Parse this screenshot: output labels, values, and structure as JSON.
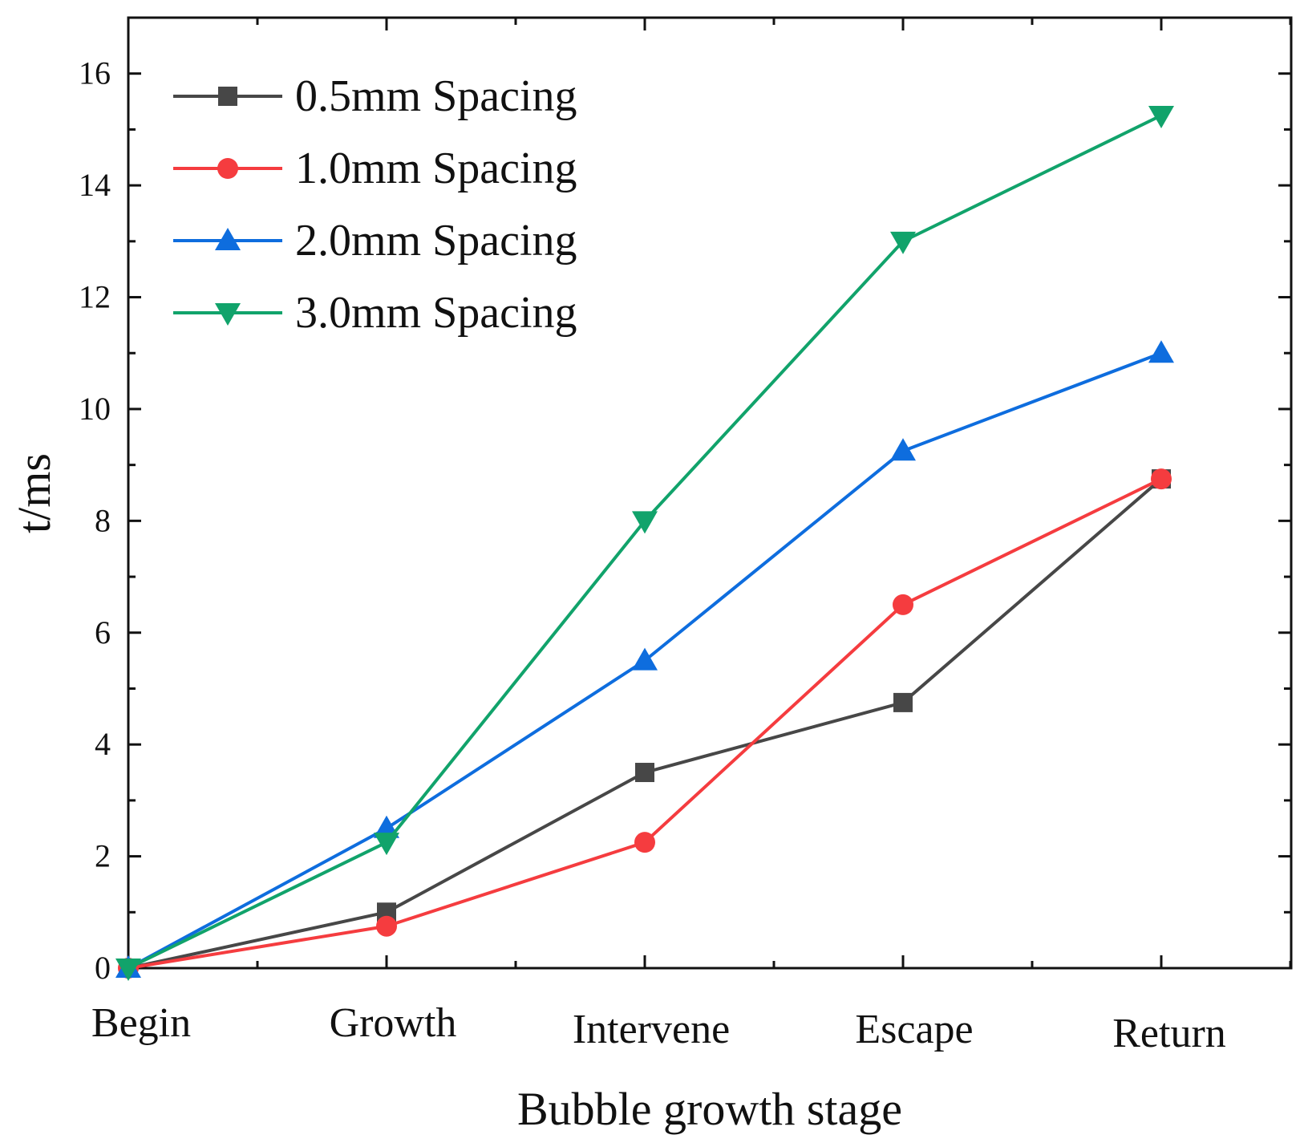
{
  "chart_data": {
    "type": "line",
    "title": "",
    "xlabel": "Bubble growth stage",
    "ylabel": "t/ms",
    "categories": [
      "Begin",
      "Growth",
      "Intervene",
      "Escape",
      "Return"
    ],
    "ylim": [
      0,
      17
    ],
    "yticks": [
      0,
      2,
      4,
      6,
      8,
      10,
      12,
      14,
      16
    ],
    "ytick_labels": [
      "0",
      "2",
      "4",
      "6",
      "8",
      "10",
      "12",
      "14",
      "16"
    ],
    "grid": false,
    "legend_position": "top-left",
    "series": [
      {
        "name": "0.5mm Spacing",
        "values": [
          0,
          1.0,
          3.5,
          4.75,
          8.75
        ],
        "color": "#474747",
        "marker": "square"
      },
      {
        "name": "1.0mm Spacing",
        "values": [
          0,
          0.75,
          2.25,
          6.5,
          8.75
        ],
        "color": "#f53c3f",
        "marker": "circle"
      },
      {
        "name": "2.0mm Spacing",
        "values": [
          0,
          2.5,
          5.5,
          9.25,
          11.0
        ],
        "color": "#0e6dde",
        "marker": "triangle-up"
      },
      {
        "name": "3.0mm Spacing",
        "values": [
          0,
          2.25,
          8.0,
          13.0,
          15.25
        ],
        "color": "#11a36b",
        "marker": "triangle-down"
      }
    ]
  }
}
